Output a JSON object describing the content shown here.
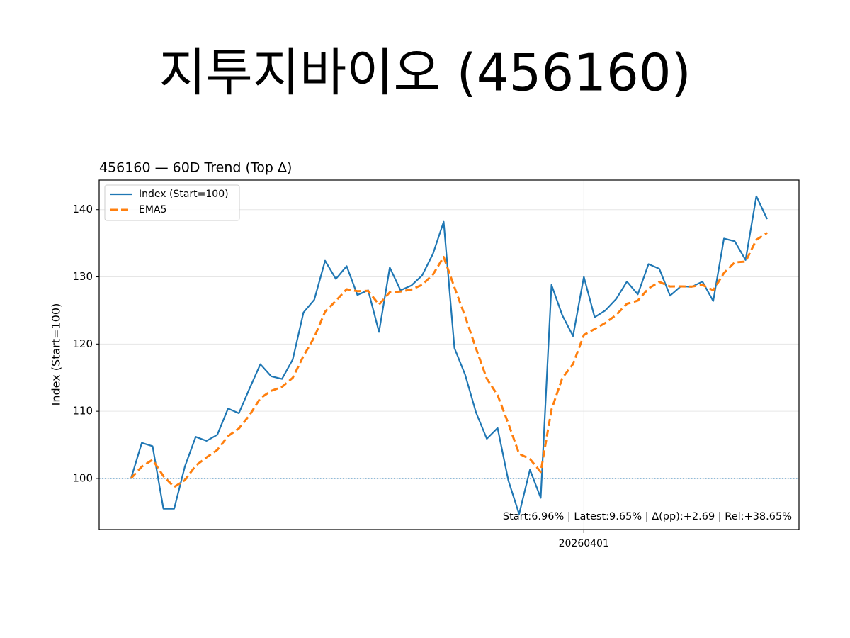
{
  "chart_data": {
    "type": "line",
    "title": "지투지바이오 (456160)",
    "subtitle": "456160 — 60D Trend (Top Δ)",
    "y_label": "Index (Start=100)",
    "annotation": "Start:6.96% | Latest:9.65% | Δ(pp):+2.69 | Rel:+38.65%",
    "categories": [
      null,
      null,
      null,
      null,
      null,
      null,
      null,
      null,
      null,
      null,
      null,
      null,
      null,
      null,
      null,
      null,
      null,
      null,
      null,
      null,
      null,
      null,
      null,
      null,
      null,
      null,
      null,
      null,
      null,
      null,
      null,
      null,
      null,
      null,
      null,
      null,
      null,
      null,
      null,
      null,
      null,
      null,
      "20260401",
      null,
      null,
      null,
      null,
      null,
      null,
      null,
      null,
      null,
      null,
      null,
      null,
      null,
      null,
      null,
      null,
      null
    ],
    "series": [
      {
        "name": "Index (Start=100)",
        "color": "#1f77b4",
        "dash": "solid",
        "values": [
          100,
          105.3,
          104.8,
          95.5,
          95.5,
          101.8,
          106.2,
          105.6,
          106.5,
          110.4,
          109.7,
          113.4,
          117,
          115.2,
          114.8,
          117.7,
          124.7,
          126.6,
          132.4,
          129.7,
          131.6,
          127.3,
          128,
          121.8,
          131.4,
          128,
          128.7,
          130.2,
          133.4,
          138.2,
          119.4,
          115.4,
          109.8,
          105.9,
          107.5,
          99.7,
          94.7,
          101.3,
          97.1,
          128.8,
          124.3,
          121.2,
          130,
          124,
          125,
          126.7,
          129.3,
          127.4,
          131.9,
          131.2,
          127.2,
          128.6,
          128.5,
          129.3,
          126.4,
          135.7,
          135.3,
          132.5,
          142,
          138.6
        ]
      },
      {
        "name": "EMA5",
        "color": "#ff7f0e",
        "dash": "dashed",
        "values": [
          100,
          101.77,
          102.78,
          100.35,
          98.73,
          99.75,
          101.9,
          103.13,
          104.25,
          106.3,
          107.43,
          109.42,
          111.95,
          113.03,
          113.62,
          114.98,
          118.22,
          121.01,
          124.81,
          126.44,
          128.16,
          127.87,
          127.91,
          125.87,
          127.71,
          127.81,
          128.11,
          128.81,
          130.34,
          132.96,
          128.44,
          124.09,
          119.33,
          114.85,
          112.4,
          108.17,
          103.68,
          102.89,
          100.96,
          110.24,
          114.93,
          117.02,
          121.35,
          122.23,
          123.15,
          124.33,
          125.99,
          126.46,
          128.27,
          129.25,
          128.57,
          128.58,
          128.55,
          128.8,
          128,
          130.57,
          132.15,
          132.27,
          135.51,
          136.54
        ]
      }
    ],
    "baseline": 100,
    "baseline_color": "#1f77b4",
    "ylim": [
      92.4,
      144.4
    ],
    "yticks": [
      100,
      110,
      120,
      130,
      140
    ],
    "grid": true,
    "legend": "upper left"
  }
}
